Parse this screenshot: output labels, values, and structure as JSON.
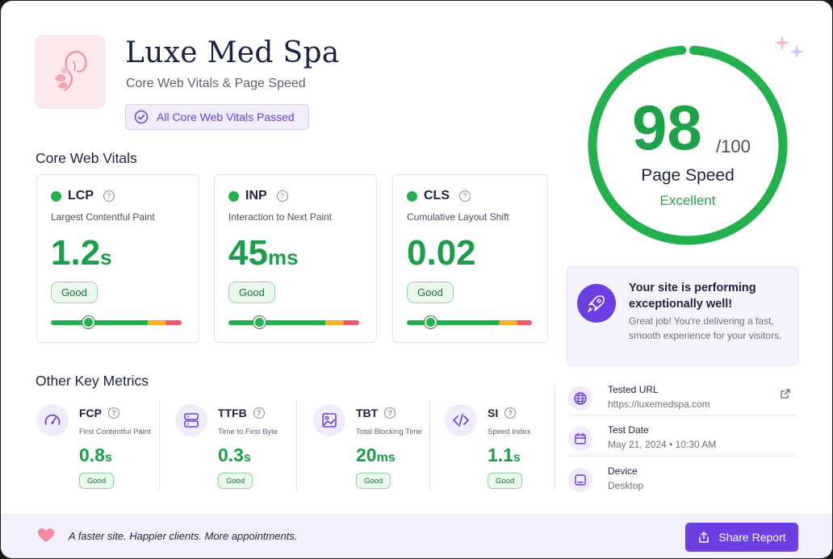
{
  "brand": {
    "name": "Luxe Med Spa",
    "subtitle": "Core Web Vitals & Page Speed",
    "badge": "All Core Web Vitals Passed"
  },
  "sections": {
    "core": "Core Web Vitals",
    "other": "Other Key Metrics"
  },
  "vitals": [
    {
      "abbr": "LCP",
      "full": "Largest Contentful Paint",
      "value": "1.2",
      "unit": "s",
      "status": "Good",
      "position": 0.29
    },
    {
      "abbr": "INP",
      "full": "Interaction to Next Paint",
      "value": "45",
      "unit": "ms",
      "status": "Good",
      "position": 0.24
    },
    {
      "abbr": "CLS",
      "full": "Cumulative Layout Shift",
      "value": "0.02",
      "unit": "",
      "status": "Good",
      "position": 0.19
    }
  ],
  "score": {
    "value": "98",
    "of": "/100",
    "fraction": 0.98,
    "label": "Page Speed",
    "grade": "Excellent"
  },
  "performing": {
    "title": "Your site is performing exceptionally well!",
    "desc": "Great job! You're delivering a fast, smooth experience for your visitors."
  },
  "metrics": [
    {
      "abbr": "FCP",
      "full": "First Contentful Paint",
      "value": "0.8",
      "unit": "s",
      "status": "Good",
      "icon": "gauge-icon"
    },
    {
      "abbr": "TTFB",
      "full": "Time to First Byte",
      "value": "0.3",
      "unit": "s",
      "status": "Good",
      "icon": "server-icon"
    },
    {
      "abbr": "TBT",
      "full": "Total Blocking Time",
      "value": "20",
      "unit": "ms",
      "status": "Good",
      "icon": "image-icon"
    },
    {
      "abbr": "SI",
      "full": "Speed Index",
      "value": "1.1",
      "unit": "s",
      "status": "Good",
      "icon": "code-icon"
    }
  ],
  "test": {
    "url_label": "Tested URL",
    "url": "https://luxemedspa.com",
    "date_label": "Test Date",
    "date": "May 21, 2024 • 10:30 AM",
    "device_label": "Device",
    "device": "Desktop"
  },
  "footer": {
    "tagline": "A faster site. Happier clients. More appointments.",
    "share": "Share Report"
  },
  "colors": {
    "good": "#22b14c",
    "accent": "#6b3fe2",
    "warn": "#f6b12a",
    "poor": "#ef5866"
  }
}
